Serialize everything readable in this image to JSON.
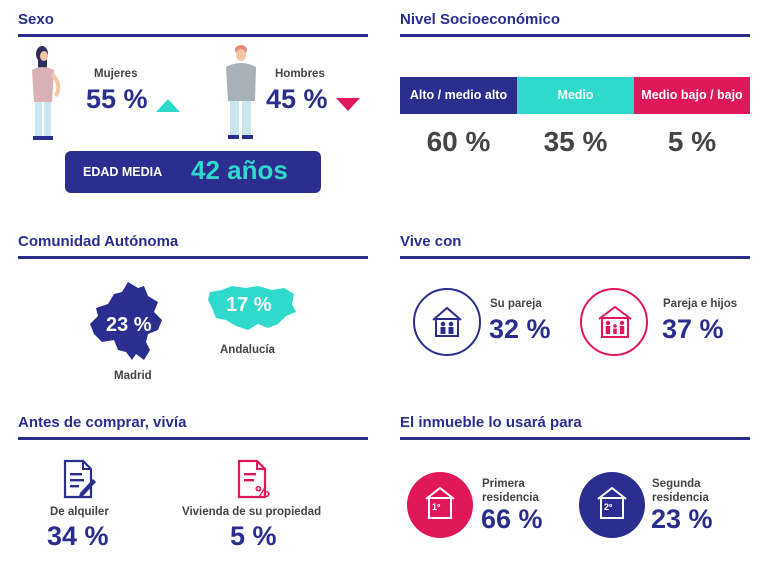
{
  "colors": {
    "navy": "#2b2d8f",
    "teal": "#2fd9cc",
    "pink": "#e0185a",
    "gray": "#444444"
  },
  "sexo": {
    "title": "Sexo",
    "mujeres": {
      "label": "Mujeres",
      "value": "55 %",
      "trend": "up"
    },
    "hombres": {
      "label": "Hombres",
      "value": "45 %",
      "trend": "down"
    },
    "edad": {
      "label": "EDAD MEDIA",
      "value": "42 años"
    }
  },
  "nivel": {
    "title": "Nivel Socioeconómico",
    "bands": [
      {
        "label": "Alto / medio alto",
        "value": "60 %",
        "color": "#2b2d8f"
      },
      {
        "label": "Medio",
        "value": "35 %",
        "color": "#2fd9cc"
      },
      {
        "label": "Medio bajo / bajo",
        "value": "5 %",
        "color": "#e0185a"
      }
    ]
  },
  "comunidad": {
    "title": "Comunidad Autónoma",
    "madrid": {
      "label": "Madrid",
      "value": "23 %"
    },
    "andalucia": {
      "label": "Andalucía",
      "value": "17 %"
    }
  },
  "vive": {
    "title": "Vive con",
    "pareja": {
      "label": "Su pareja",
      "value": "32 %"
    },
    "hijos": {
      "label": "Pareja e hijos",
      "value": "37 %"
    }
  },
  "antes": {
    "title": "Antes de comprar, vivía",
    "alquiler": {
      "label": "De alquiler",
      "value": "34 %"
    },
    "propiedad": {
      "label": "Vivienda de su propiedad",
      "value": "5 %"
    }
  },
  "uso": {
    "title": "El inmueble lo usará para",
    "primera": {
      "label_line1": "Primera",
      "label_line2": "residencia",
      "value": "66 %",
      "badge": "1º"
    },
    "segunda": {
      "label_line1": "Segunda",
      "label_line2": "residencia",
      "value": "23 %",
      "badge": "2º"
    }
  }
}
